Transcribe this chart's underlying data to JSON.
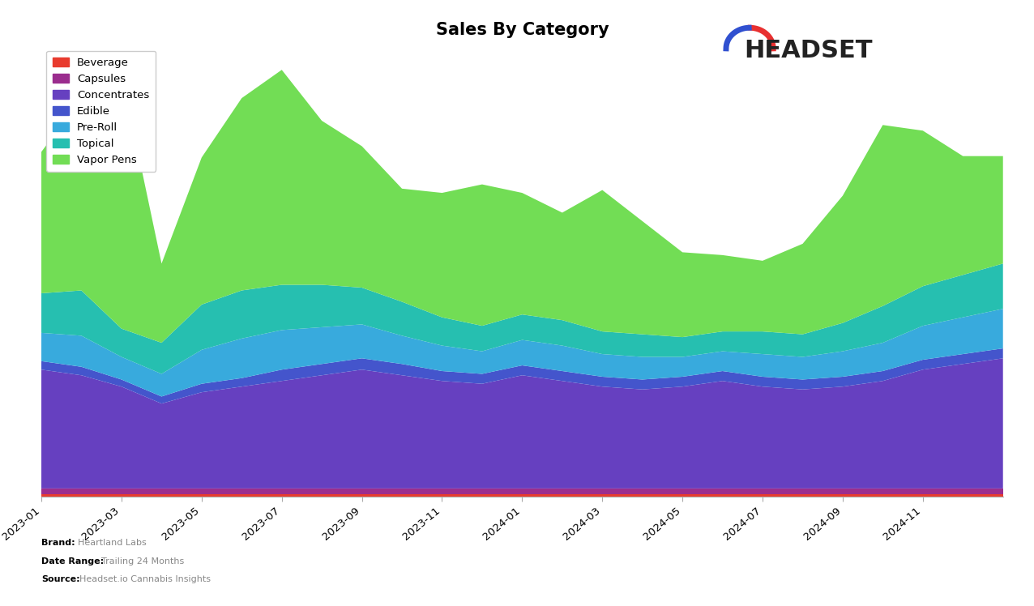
{
  "title": "Sales By Category",
  "categories": [
    "Beverage",
    "Capsules",
    "Concentrates",
    "Edible",
    "Pre-Roll",
    "Topical",
    "Vapor Pens"
  ],
  "colors": [
    "#e83b2e",
    "#9b2d8e",
    "#6640c0",
    "#4455cc",
    "#38aadd",
    "#26bfb0",
    "#72dd55"
  ],
  "brand": "Heartland Labs",
  "date_range": "Trailing 24 Months",
  "source": "Headset.io Cannabis Insights",
  "background_color": "#ffffff",
  "n_points": 25,
  "x_tick_labels": [
    "2023-01",
    "2023-03",
    "2023-05",
    "2023-07",
    "2023-09",
    "2023-11",
    "2024-01",
    "2024-03",
    "2024-05",
    "2024-07",
    "2024-09",
    "2024-11"
  ],
  "x_tick_positions": [
    0,
    2,
    4,
    6,
    8,
    10,
    12,
    14,
    16,
    18,
    20,
    22
  ],
  "beverage": [
    1,
    1,
    1,
    1,
    1,
    1,
    1,
    1,
    1,
    1,
    1,
    1,
    1,
    1,
    1,
    1,
    1,
    1,
    1,
    1,
    1,
    1,
    1,
    1,
    1
  ],
  "capsules": [
    2,
    2,
    2,
    2,
    2,
    2,
    2,
    2,
    2,
    2,
    2,
    2,
    2,
    2,
    2,
    2,
    2,
    2,
    2,
    2,
    2,
    2,
    2,
    2,
    2
  ],
  "concentrates": [
    42,
    40,
    36,
    30,
    34,
    36,
    38,
    40,
    42,
    40,
    38,
    37,
    40,
    38,
    36,
    35,
    36,
    38,
    36,
    35,
    36,
    38,
    42,
    44,
    46
  ],
  "edible": [
    3,
    3,
    2.5,
    2.5,
    3,
    3,
    4,
    4,
    4,
    4,
    3.5,
    3.5,
    3.5,
    3.5,
    3.5,
    3.5,
    3.5,
    3.5,
    3.5,
    3.5,
    3.5,
    3.5,
    3.5,
    3.5,
    3.5
  ],
  "preroll": [
    10,
    11,
    8,
    8,
    12,
    14,
    14,
    13,
    12,
    10,
    9,
    8,
    9,
    9,
    8,
    8,
    7,
    7,
    8,
    8,
    9,
    10,
    12,
    13,
    14
  ],
  "topical": [
    14,
    16,
    10,
    11,
    16,
    17,
    16,
    15,
    13,
    12,
    10,
    9,
    9,
    9,
    8,
    8,
    7,
    7,
    8,
    8,
    10,
    13,
    14,
    15,
    16
  ],
  "vapor_pens": [
    50,
    68,
    90,
    28,
    52,
    68,
    76,
    58,
    50,
    40,
    44,
    50,
    43,
    38,
    50,
    40,
    30,
    27,
    25,
    32,
    45,
    64,
    55,
    42,
    38
  ]
}
